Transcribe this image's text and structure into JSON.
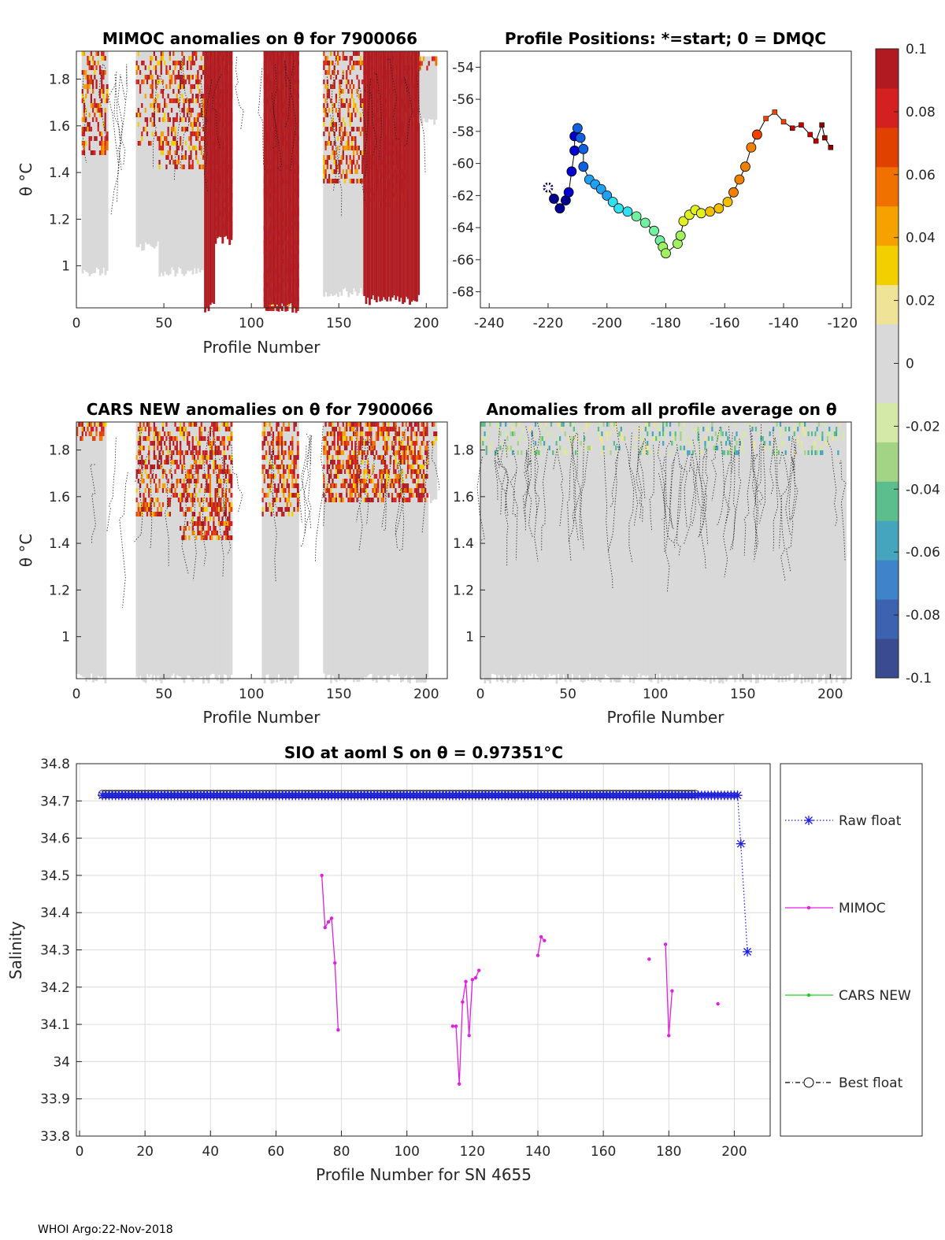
{
  "footer": "WHOI Argo:22-Nov-2018",
  "colorbar": {
    "ticks": [
      "0.1",
      "0.08",
      "0.06",
      "0.04",
      "0.02",
      "0",
      "-0.02",
      "-0.04",
      "-0.06",
      "-0.08",
      "-0.1"
    ],
    "colors": [
      "#3b4b8f",
      "#3c62b0",
      "#3f84c8",
      "#44a5bd",
      "#5cbd8d",
      "#a3d486",
      "#d4e8a8",
      "#d9d9d9",
      "#d9d9d9",
      "#efe398",
      "#f2d000",
      "#f5a200",
      "#f07000",
      "#e04000",
      "#d42020",
      "#b01a20"
    ]
  },
  "panels": {
    "mimoc": {
      "title": "MIMOC anomalies on θ  for 7900066",
      "xlabel": "Profile Number",
      "ylabel": "θ °C",
      "xticks": [
        "0",
        "50",
        "100",
        "150",
        "200"
      ],
      "yticks": [
        "1.8",
        "1.6",
        "1.4",
        "1.2",
        "1"
      ]
    },
    "positions": {
      "title": "Profile Positions: *=start; 0 = DMQC",
      "xticks": [
        "-240",
        "-220",
        "-200",
        "-180",
        "-160",
        "-140",
        "-120"
      ],
      "yticks": [
        "-54",
        "-56",
        "-58",
        "-60",
        "-62",
        "-64",
        "-66",
        "-68"
      ]
    },
    "cars": {
      "title": "CARS NEW anomalies on θ for 7900066",
      "xlabel": "Profile Number",
      "ylabel": "θ °C",
      "xticks": [
        "0",
        "50",
        "100",
        "150",
        "200"
      ],
      "yticks": [
        "1.8",
        "1.6",
        "1.4",
        "1.2",
        "1"
      ]
    },
    "average": {
      "title": "Anomalies from all profile average on θ",
      "xlabel": "Profile Number",
      "xticks": [
        "0",
        "50",
        "100",
        "150",
        "200"
      ],
      "yticks": [
        "1.8",
        "1.6",
        "1.4",
        "1.2",
        "1"
      ]
    }
  },
  "chart_data": {
    "type": "line",
    "title": "SIO at aoml S on θ = 0.97351°C",
    "xlabel": "Profile Number for SN 4655",
    "ylabel": "Salinity",
    "xlim": [
      0,
      210
    ],
    "ylim": [
      33.8,
      34.8
    ],
    "xticks": [
      "0",
      "20",
      "40",
      "60",
      "80",
      "100",
      "120",
      "140",
      "160",
      "180",
      "200"
    ],
    "yticks": [
      "34.8",
      "34.7",
      "34.6",
      "34.5",
      "34.4",
      "34.3",
      "34.2",
      "34.1",
      "34",
      "33.9",
      "33.8"
    ],
    "legend_position": "right",
    "series": [
      {
        "name": "Raw float",
        "color": "#1f1fe0",
        "style": "dotted-star",
        "baseline_x": [
          7,
          201
        ],
        "baseline_value": 34.715,
        "tail_x": [
          201,
          202,
          204
        ],
        "tail_values": [
          34.715,
          34.585,
          34.295
        ]
      },
      {
        "name": "MIMOC",
        "color": "#e020e0",
        "style": "solid-dot",
        "segments": [
          {
            "x": [
              74,
              75,
              76,
              77,
              78,
              79
            ],
            "values": [
              34.5,
              34.36,
              34.375,
              34.385,
              34.265,
              34.085
            ]
          },
          {
            "x": [
              114,
              115,
              116,
              117,
              118,
              119,
              120,
              121,
              122
            ],
            "values": [
              34.095,
              34.095,
              33.94,
              34.16,
              34.215,
              34.07,
              34.22,
              34.225,
              34.245
            ]
          },
          {
            "x": [
              140,
              141,
              142
            ],
            "values": [
              34.285,
              34.335,
              34.325
            ]
          },
          {
            "x": [
              174
            ],
            "values": [
              34.275
            ]
          },
          {
            "x": [
              179,
              180,
              181
            ],
            "values": [
              34.315,
              34.07,
              34.19
            ]
          },
          {
            "x": [
              195
            ],
            "values": [
              34.155
            ]
          }
        ]
      },
      {
        "name": "CARS NEW",
        "color": "#20d020",
        "style": "solid-dot",
        "baseline_x": [
          7,
          197
        ],
        "baseline_value": 34.717
      },
      {
        "name": "Best float",
        "color": "#000000",
        "style": "dashdot-circle",
        "baseline_x": [
          7,
          188
        ],
        "baseline_value": 34.718
      }
    ]
  }
}
